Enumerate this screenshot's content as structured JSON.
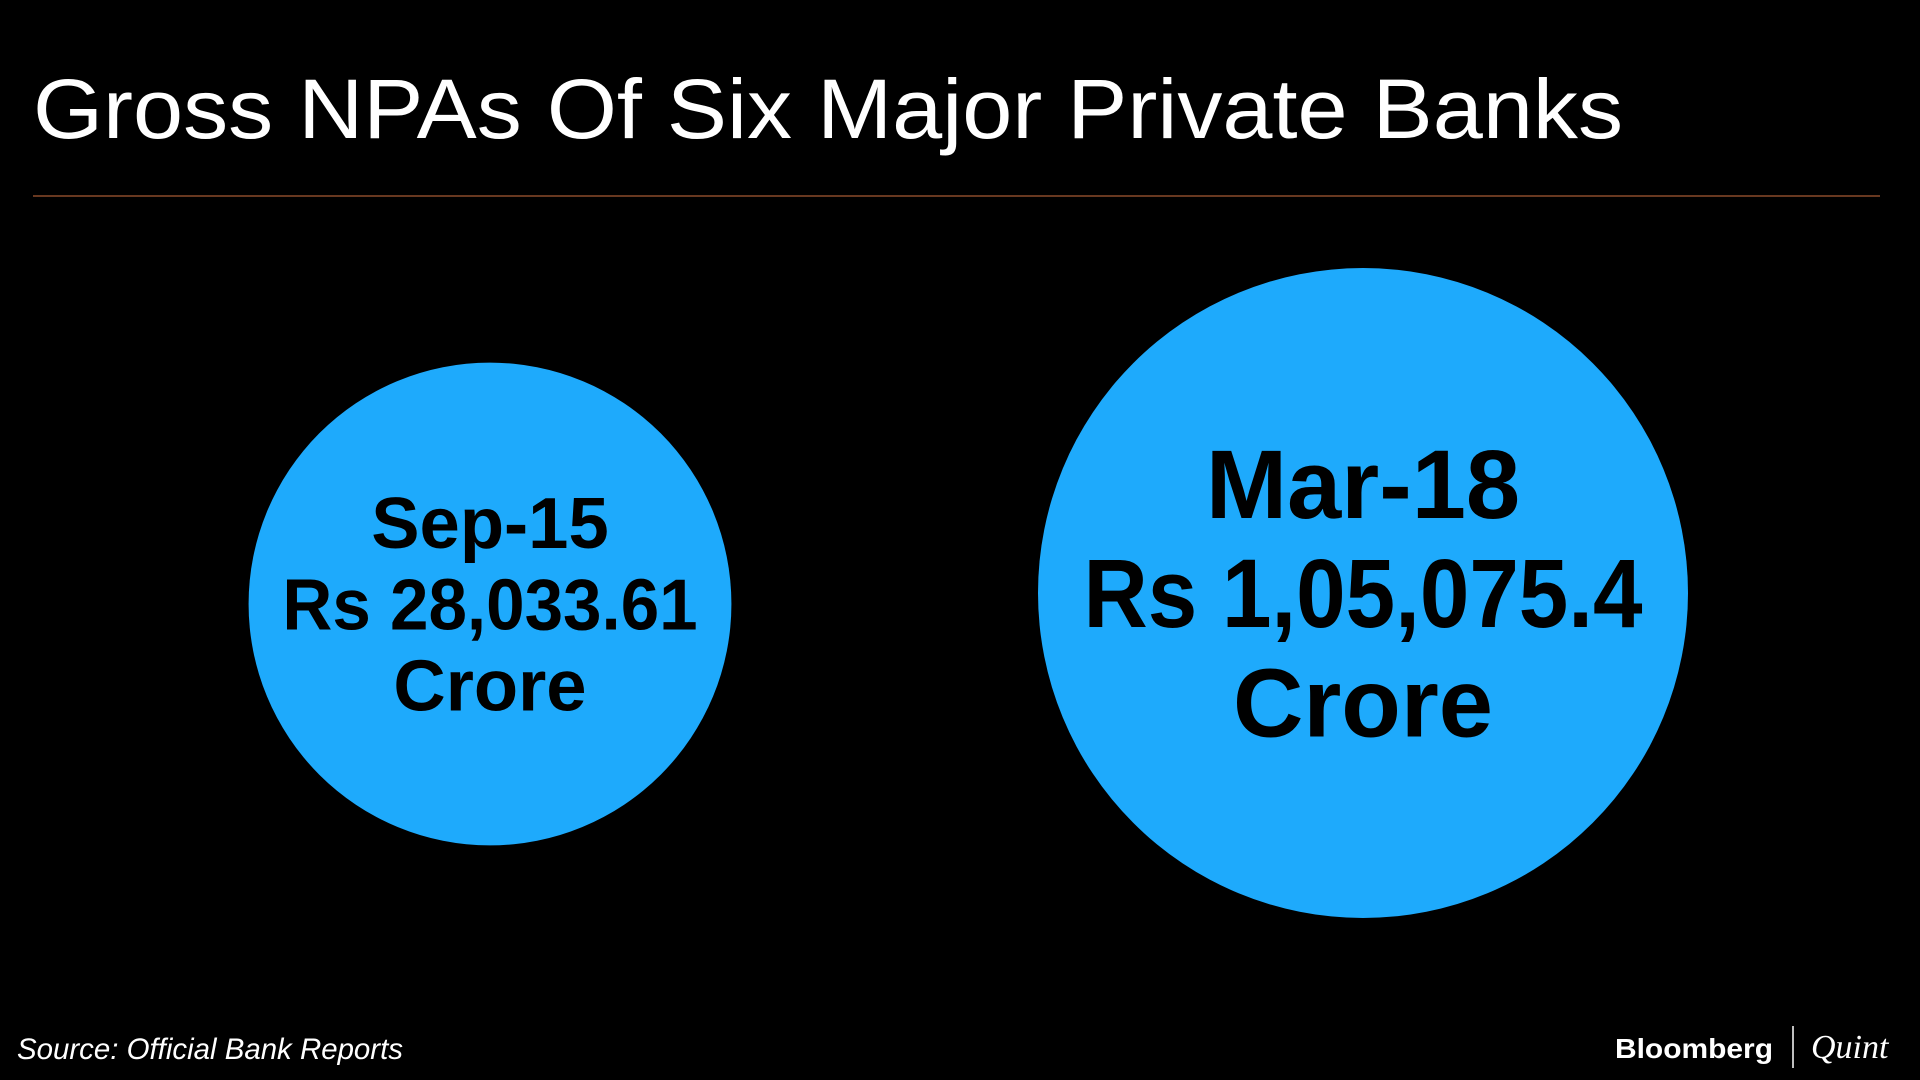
{
  "chart_data": {
    "type": "bubble",
    "title": "Gross NPAs Of Six Major Private Banks",
    "categories": [
      "Sep-15",
      "Mar-18"
    ],
    "values": [
      28033.61,
      105075.4
    ],
    "value_labels": [
      "Rs 28,033.61",
      "Rs 1,05,075.4"
    ],
    "unit": "Crore",
    "color": "#1eaafc",
    "source": "Source: Official Bank Reports",
    "logo": {
      "left": "Bloomberg",
      "right": "Quint"
    }
  }
}
